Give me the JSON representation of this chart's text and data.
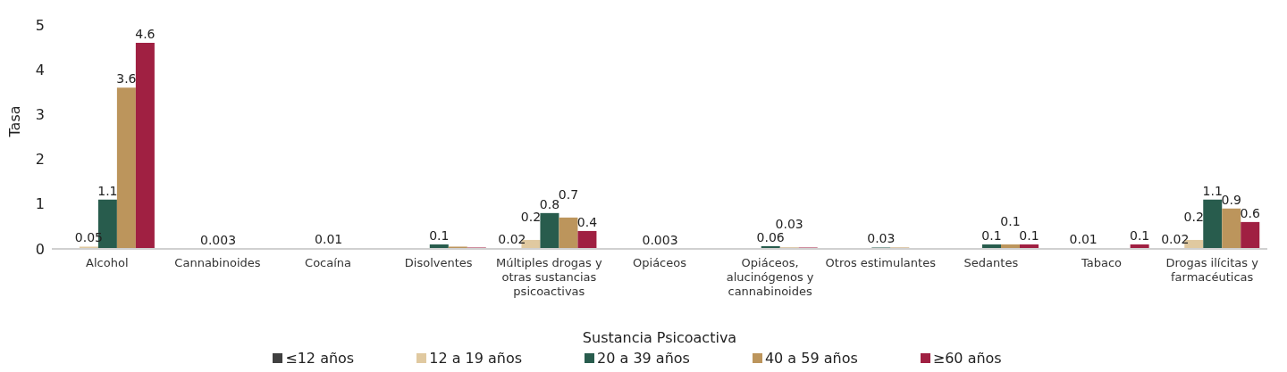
{
  "chart_data": {
    "type": "bar",
    "xlabel": "Sustancia Psicoactiva",
    "ylabel": "Tasa",
    "categories": [
      "Alcohol",
      "Cannabinoides",
      "Cocaína",
      "Disolventes",
      "Múltiples drogas y otras sustancias psicoactivas",
      "Opiáceos",
      "Opiáceos, alucinógenos y cannabinoides",
      "Otros estimulantes",
      "Sedantes",
      "Tabaco",
      "Drogas ilícitas y farmacéuticas"
    ],
    "series": [
      {
        "name": "≤12 años",
        "color": "#404040",
        "values": [
          null,
          null,
          null,
          null,
          0.02,
          null,
          null,
          null,
          null,
          null,
          0.02
        ],
        "value_labels": [
          null,
          null,
          null,
          null,
          "0.02",
          null,
          null,
          null,
          null,
          null,
          "0.02"
        ]
      },
      {
        "name": "12 a 19 años",
        "color": "#e0c9a0",
        "values": [
          0.05,
          null,
          0.01,
          null,
          0.2,
          null,
          0.01,
          0.01,
          0.02,
          0.01,
          0.2
        ],
        "value_labels": [
          "0.05",
          null,
          null,
          null,
          "0.2",
          null,
          null,
          null,
          null,
          "0.01",
          "0.2"
        ]
      },
      {
        "name": "20 a 39 años",
        "color": "#285c4d",
        "values": [
          1.1,
          0.003,
          0.01,
          0.1,
          0.8,
          0.003,
          0.06,
          0.03,
          0.1,
          null,
          1.1
        ],
        "value_labels": [
          "1.1",
          "0.003",
          "0.01",
          "0.1",
          "0.8",
          "0.003",
          "0.06",
          "0.03",
          "0.1",
          null,
          "1.1"
        ]
      },
      {
        "name": "40 a 59 años",
        "color": "#bc955c",
        "values": [
          3.6,
          null,
          0.01,
          0.05,
          0.7,
          0.01,
          0.03,
          0.03,
          0.1,
          null,
          0.9
        ],
        "value_labels": [
          "3.6",
          null,
          null,
          null,
          "0.7",
          null,
          "0.03",
          null,
          "0.1",
          null,
          "0.9"
        ]
      },
      {
        "name": "≥60 años",
        "color": "#a02042",
        "values": [
          4.6,
          null,
          null,
          0.03,
          0.4,
          null,
          0.03,
          null,
          0.1,
          0.1,
          0.6
        ],
        "value_labels": [
          "4.6",
          null,
          null,
          null,
          "0.4",
          null,
          null,
          null,
          "0.1",
          "0.1",
          "0.6"
        ]
      }
    ],
    "ylim": [
      0,
      5
    ],
    "yticks": [
      0,
      1,
      2,
      3,
      4,
      5
    ],
    "grid": false,
    "legend": "bottom"
  }
}
